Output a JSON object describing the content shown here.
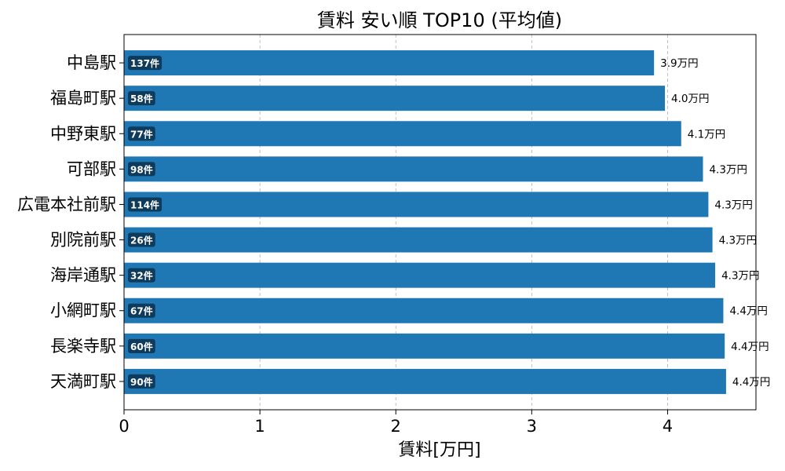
{
  "chart_data": {
    "type": "bar",
    "orientation": "horizontal",
    "title": "賃料 安い順 TOP10 (平均値)",
    "xlabel": "賃料[万円]",
    "ylabel": "",
    "xlim": [
      0,
      4.65
    ],
    "xticks": [
      "0",
      "1",
      "2",
      "3",
      "4"
    ],
    "grid": "x-dashed",
    "bar_color": "#1f77b4",
    "count_badge_color": "#0e3a5c",
    "categories": [
      "中島駅",
      "福島町駅",
      "中野東駅",
      "可部駅",
      "広電本社前駅",
      "別院前駅",
      "海岸通駅",
      "小網町駅",
      "長楽寺駅",
      "天満町駅"
    ],
    "values": [
      3.9,
      3.98,
      4.1,
      4.26,
      4.3,
      4.33,
      4.35,
      4.41,
      4.42,
      4.43
    ],
    "value_labels": [
      "3.9万円",
      "4.0万円",
      "4.1万円",
      "4.3万円",
      "4.3万円",
      "4.3万円",
      "4.3万円",
      "4.4万円",
      "4.4万円",
      "4.4万円"
    ],
    "count_labels": [
      "137件",
      "58件",
      "77件",
      "98件",
      "114件",
      "26件",
      "32件",
      "67件",
      "60件",
      "90件"
    ]
  }
}
